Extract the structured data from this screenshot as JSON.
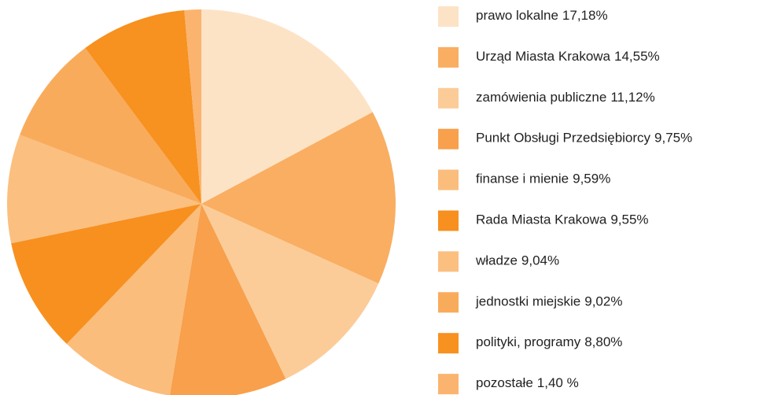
{
  "chart_data": {
    "type": "pie",
    "categories": [
      "prawo lokalne",
      "Urząd Miasta Krakowa",
      "zamówienia publiczne",
      "Punkt Obsługi Przedsiębiorcy",
      "finanse i mienie",
      "Rada Miasta Krakowa",
      "władze",
      "jednostki miejskie",
      "polityki, programy",
      "pozostałe"
    ],
    "values": [
      17.18,
      14.55,
      11.12,
      9.75,
      9.59,
      9.55,
      9.04,
      9.02,
      8.8,
      1.4
    ],
    "value_labels": [
      "17,18%",
      "14,55%",
      "11,12%",
      "9,75%",
      "9,59%",
      "9,55%",
      "9,04%",
      "9,02%",
      "8,80%",
      "1,40 %"
    ],
    "colors": [
      "#fde3c6",
      "#f9ae62",
      "#fccc98",
      "#f8a04c",
      "#fbbd7c",
      "#f7901f",
      "#fbbf80",
      "#f9ab5c",
      "#f7911f",
      "#fbb46f"
    ],
    "legend": "right"
  }
}
